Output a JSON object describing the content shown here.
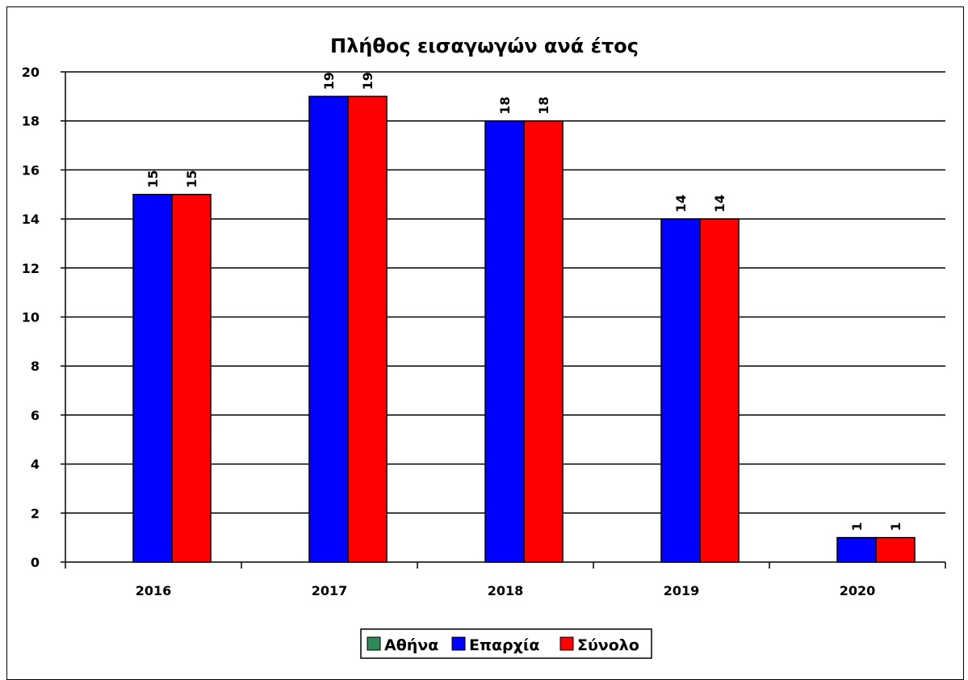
{
  "chart_data": {
    "type": "bar",
    "title": "Πλήθος εισαγωγών ανά έτος",
    "categories": [
      "2016",
      "2017",
      "2018",
      "2019",
      "2020"
    ],
    "series": [
      {
        "name": "Αθήνα",
        "color": "#2e8b57",
        "values": [
          0,
          0,
          0,
          0,
          0
        ]
      },
      {
        "name": "Επαρχία",
        "color": "#0000ff",
        "values": [
          15,
          19,
          18,
          14,
          1
        ]
      },
      {
        "name": "Σύνολο",
        "color": "#ff0000",
        "values": [
          15,
          19,
          18,
          14,
          1
        ]
      }
    ],
    "ylim": [
      0,
      20
    ],
    "yticks": [
      0,
      2,
      4,
      6,
      8,
      10,
      12,
      14,
      16,
      18,
      20
    ],
    "grid": true,
    "legend_position": "bottom"
  }
}
